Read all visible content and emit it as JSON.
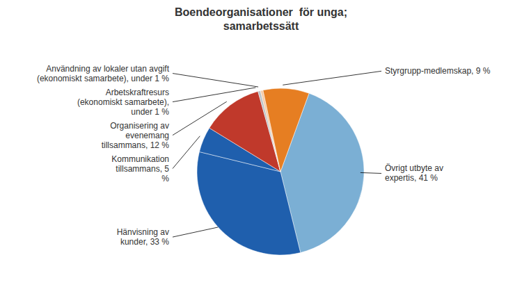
{
  "chart_data": {
    "type": "pie",
    "title": "Boendeorganisationer  för unga;\nsamarbetssätt",
    "categories": [
      "Övrigt utbyte av\nexpertis, 41 %",
      "Hänvisning av\nkunder, 33 %",
      "Kommunikation\ntillsammans, 5\n%",
      "Organisering av\nevenemang\ntillsammans, 12 %",
      "Arbetskraftresurs\n(ekonomiskt samarbete),\nunder 1 %",
      "Användning av lokaler utan avgift\n(ekonomiskt samarbete), under 1 %",
      "Styrgrupp-medlemskap, 9 %"
    ],
    "values": [
      41,
      33,
      5,
      12,
      0.5,
      0.5,
      9
    ],
    "colors": [
      "#7BAFD4",
      "#1F5FAD",
      "#1F5FAD",
      "#C0392B",
      "#BDC3C7",
      "#F5CBA7",
      "#E67E22"
    ]
  }
}
